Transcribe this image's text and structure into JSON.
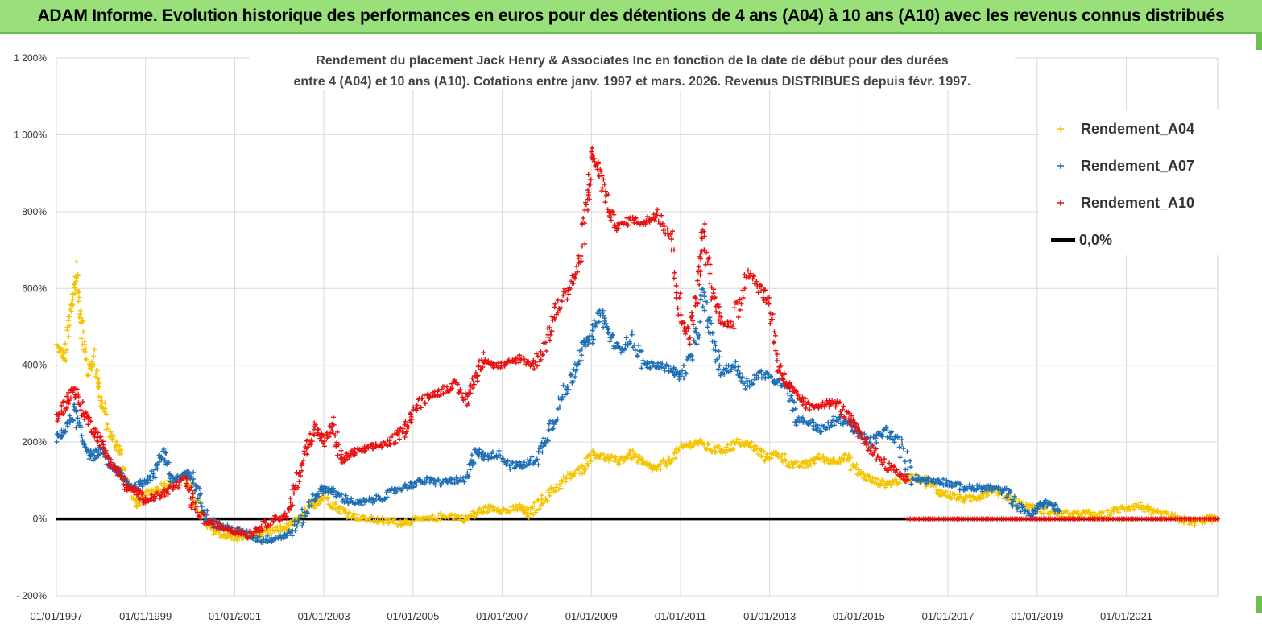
{
  "header": {
    "title": "ADAM Informe. Evolution historique des performances en euros pour des détentions de 4 ans (A04) à 10 ans (A10) avec les revenus connus distribués"
  },
  "chart_data": {
    "type": "scatter",
    "title_lines": [
      "Rendement du placement Jack Henry & Associates Inc en fonction de la date de début pour des durées",
      "entre 4 (A04) et 10 ans (A10). Cotations entre janv. 1997 et mars. 2026. Revenus DISTRIBUES depuis févr. 1997."
    ],
    "xlabel": "",
    "ylabel": "",
    "xlim": [
      1997.0,
      2023.05
    ],
    "ylim": [
      -200,
      1200
    ],
    "y_ticks": [
      -200,
      0,
      200,
      400,
      600,
      800,
      1000,
      1200
    ],
    "y_tick_labels": [
      "- 200%",
      "0%",
      "200%",
      "400%",
      "600%",
      "800%",
      "1 000%",
      "1 200%"
    ],
    "x_ticks": [
      1997,
      1999,
      2001,
      2003,
      2005,
      2007,
      2009,
      2011,
      2013,
      2015,
      2017,
      2019,
      2021
    ],
    "x_tick_labels": [
      "01/01/1997",
      "01/01/1999",
      "01/01/2001",
      "01/01/2003",
      "01/01/2005",
      "01/01/2007",
      "01/01/2009",
      "01/01/2011",
      "01/01/2013",
      "01/01/2015",
      "01/01/2017",
      "01/01/2019",
      "01/01/2021"
    ],
    "grid": true,
    "legend_position": "top-right",
    "series": [
      {
        "name": "Rendement_A04",
        "color": "#f5c400",
        "marker": "plus",
        "points": [
          [
            1997.0,
            450
          ],
          [
            1997.2,
            420
          ],
          [
            1997.35,
            560
          ],
          [
            1997.45,
            640
          ],
          [
            1997.55,
            520
          ],
          [
            1997.7,
            380
          ],
          [
            1997.85,
            420
          ],
          [
            1998.0,
            310
          ],
          [
            1998.2,
            220
          ],
          [
            1998.4,
            180
          ],
          [
            1998.6,
            90
          ],
          [
            1998.8,
            40
          ],
          [
            1999.0,
            60
          ],
          [
            1999.3,
            80
          ],
          [
            1999.6,
            100
          ],
          [
            1999.9,
            110
          ],
          [
            2000.1,
            50
          ],
          [
            2000.4,
            -20
          ],
          [
            2000.7,
            -40
          ],
          [
            2001.0,
            -50
          ],
          [
            2001.3,
            -45
          ],
          [
            2001.6,
            -40
          ],
          [
            2001.9,
            -30
          ],
          [
            2002.2,
            -20
          ],
          [
            2002.5,
            0
          ],
          [
            2002.8,
            40
          ],
          [
            2003.0,
            60
          ],
          [
            2003.3,
            30
          ],
          [
            2003.6,
            10
          ],
          [
            2003.9,
            0
          ],
          [
            2004.3,
            -5
          ],
          [
            2004.7,
            -10
          ],
          [
            2005.0,
            -5
          ],
          [
            2005.4,
            0
          ],
          [
            2005.8,
            10
          ],
          [
            2006.2,
            0
          ],
          [
            2006.5,
            20
          ],
          [
            2006.8,
            30
          ],
          [
            2007.1,
            20
          ],
          [
            2007.4,
            30
          ],
          [
            2007.6,
            10
          ],
          [
            2007.9,
            50
          ],
          [
            2008.2,
            80
          ],
          [
            2008.5,
            110
          ],
          [
            2008.8,
            130
          ],
          [
            2009.0,
            170
          ],
          [
            2009.3,
            160
          ],
          [
            2009.6,
            150
          ],
          [
            2009.9,
            170
          ],
          [
            2010.2,
            140
          ],
          [
            2010.5,
            130
          ],
          [
            2010.8,
            160
          ],
          [
            2011.1,
            190
          ],
          [
            2011.4,
            200
          ],
          [
            2011.7,
            180
          ],
          [
            2012.0,
            180
          ],
          [
            2012.3,
            200
          ],
          [
            2012.6,
            190
          ],
          [
            2012.9,
            160
          ],
          [
            2013.2,
            170
          ],
          [
            2013.5,
            140
          ],
          [
            2013.8,
            140
          ],
          [
            2014.1,
            160
          ],
          [
            2014.4,
            150
          ],
          [
            2014.7,
            160
          ],
          [
            2015.0,
            120
          ],
          [
            2015.3,
            100
          ],
          [
            2015.6,
            90
          ],
          [
            2015.9,
            100
          ],
          [
            2016.2,
            110
          ],
          [
            2016.5,
            100
          ],
          [
            2016.8,
            70
          ],
          [
            2017.1,
            60
          ],
          [
            2017.4,
            50
          ],
          [
            2017.7,
            60
          ],
          [
            2018.0,
            80
          ],
          [
            2018.3,
            60
          ],
          [
            2018.6,
            40
          ],
          [
            2018.9,
            30
          ],
          [
            2019.2,
            20
          ],
          [
            2019.5,
            15
          ],
          [
            2019.8,
            10
          ],
          [
            2020.1,
            15
          ],
          [
            2020.4,
            5
          ],
          [
            2020.7,
            20
          ],
          [
            2021.0,
            30
          ],
          [
            2021.3,
            35
          ],
          [
            2021.6,
            15
          ],
          [
            2021.9,
            10
          ],
          [
            2022.2,
            0
          ],
          [
            2022.5,
            -10
          ],
          [
            2022.8,
            0
          ],
          [
            2023.0,
            0
          ]
        ]
      },
      {
        "name": "Rendement_A07",
        "color": "#1f6fb5",
        "marker": "plus",
        "points": [
          [
            1997.0,
            210
          ],
          [
            1997.2,
            230
          ],
          [
            1997.4,
            280
          ],
          [
            1997.6,
            200
          ],
          [
            1997.8,
            160
          ],
          [
            1998.0,
            180
          ],
          [
            1998.2,
            140
          ],
          [
            1998.4,
            120
          ],
          [
            1998.6,
            90
          ],
          [
            1998.8,
            80
          ],
          [
            1999.0,
            100
          ],
          [
            1999.2,
            120
          ],
          [
            1999.4,
            180
          ],
          [
            1999.6,
            100
          ],
          [
            1999.8,
            110
          ],
          [
            2000.0,
            120
          ],
          [
            2000.2,
            60
          ],
          [
            2000.4,
            0
          ],
          [
            2000.7,
            -20
          ],
          [
            2001.0,
            -30
          ],
          [
            2001.3,
            -40
          ],
          [
            2001.6,
            -55
          ],
          [
            2001.9,
            -50
          ],
          [
            2002.2,
            -40
          ],
          [
            2002.5,
            0
          ],
          [
            2002.8,
            60
          ],
          [
            2003.0,
            80
          ],
          [
            2003.2,
            70
          ],
          [
            2003.5,
            50
          ],
          [
            2003.8,
            40
          ],
          [
            2004.1,
            50
          ],
          [
            2004.4,
            60
          ],
          [
            2004.7,
            80
          ],
          [
            2005.0,
            90
          ],
          [
            2005.3,
            100
          ],
          [
            2005.6,
            95
          ],
          [
            2005.9,
            100
          ],
          [
            2006.2,
            100
          ],
          [
            2006.4,
            180
          ],
          [
            2006.6,
            160
          ],
          [
            2006.9,
            170
          ],
          [
            2007.2,
            140
          ],
          [
            2007.5,
            140
          ],
          [
            2007.8,
            160
          ],
          [
            2008.0,
            220
          ],
          [
            2008.3,
            300
          ],
          [
            2008.6,
            380
          ],
          [
            2008.8,
            450
          ],
          [
            2009.0,
            470
          ],
          [
            2009.2,
            540
          ],
          [
            2009.4,
            480
          ],
          [
            2009.6,
            440
          ],
          [
            2009.9,
            470
          ],
          [
            2010.2,
            400
          ],
          [
            2010.5,
            400
          ],
          [
            2010.8,
            390
          ],
          [
            2011.0,
            370
          ],
          [
            2011.3,
            430
          ],
          [
            2011.5,
            580
          ],
          [
            2011.7,
            480
          ],
          [
            2011.9,
            380
          ],
          [
            2012.2,
            400
          ],
          [
            2012.5,
            350
          ],
          [
            2012.8,
            380
          ],
          [
            2013.1,
            360
          ],
          [
            2013.4,
            350
          ],
          [
            2013.6,
            260
          ],
          [
            2013.9,
            250
          ],
          [
            2014.2,
            230
          ],
          [
            2014.5,
            260
          ],
          [
            2014.8,
            250
          ],
          [
            2015.0,
            220
          ],
          [
            2015.3,
            200
          ],
          [
            2015.6,
            230
          ],
          [
            2015.9,
            200
          ],
          [
            2016.2,
            110
          ],
          [
            2016.5,
            100
          ],
          [
            2016.8,
            100
          ],
          [
            2017.1,
            90
          ],
          [
            2017.4,
            80
          ],
          [
            2017.7,
            80
          ],
          [
            2018.0,
            80
          ],
          [
            2018.3,
            70
          ],
          [
            2018.6,
            30
          ],
          [
            2018.9,
            10
          ],
          [
            2019.1,
            40
          ],
          [
            2019.3,
            40
          ],
          [
            2019.5,
            20
          ]
        ]
      },
      {
        "name": "Rendement_A10",
        "color": "#e81010",
        "marker": "plus",
        "points": [
          [
            1997.0,
            260
          ],
          [
            1997.2,
            300
          ],
          [
            1997.4,
            340
          ],
          [
            1997.6,
            280
          ],
          [
            1997.8,
            240
          ],
          [
            1998.0,
            200
          ],
          [
            1998.2,
            150
          ],
          [
            1998.4,
            120
          ],
          [
            1998.6,
            80
          ],
          [
            1998.8,
            70
          ],
          [
            1999.0,
            50
          ],
          [
            1999.3,
            60
          ],
          [
            1999.6,
            80
          ],
          [
            1999.9,
            100
          ],
          [
            2000.1,
            30
          ],
          [
            2000.4,
            -10
          ],
          [
            2000.7,
            -20
          ],
          [
            2001.0,
            -30
          ],
          [
            2001.3,
            -40
          ],
          [
            2001.6,
            -20
          ],
          [
            2001.9,
            0
          ],
          [
            2002.2,
            10
          ],
          [
            2002.4,
            100
          ],
          [
            2002.6,
            180
          ],
          [
            2002.8,
            240
          ],
          [
            2003.0,
            200
          ],
          [
            2003.2,
            240
          ],
          [
            2003.4,
            150
          ],
          [
            2003.6,
            170
          ],
          [
            2003.9,
            180
          ],
          [
            2004.2,
            190
          ],
          [
            2004.5,
            200
          ],
          [
            2004.8,
            230
          ],
          [
            2005.0,
            280
          ],
          [
            2005.3,
            320
          ],
          [
            2005.6,
            330
          ],
          [
            2005.9,
            350
          ],
          [
            2006.2,
            310
          ],
          [
            2006.4,
            370
          ],
          [
            2006.6,
            420
          ],
          [
            2006.8,
            400
          ],
          [
            2007.1,
            400
          ],
          [
            2007.4,
            420
          ],
          [
            2007.7,
            400
          ],
          [
            2008.0,
            460
          ],
          [
            2008.2,
            540
          ],
          [
            2008.5,
            600
          ],
          [
            2008.7,
            650
          ],
          [
            2008.9,
            800
          ],
          [
            2009.0,
            950
          ],
          [
            2009.2,
            900
          ],
          [
            2009.4,
            800
          ],
          [
            2009.6,
            760
          ],
          [
            2009.9,
            780
          ],
          [
            2010.2,
            770
          ],
          [
            2010.5,
            800
          ],
          [
            2010.8,
            730
          ],
          [
            2011.0,
            520
          ],
          [
            2011.2,
            480
          ],
          [
            2011.4,
            600
          ],
          [
            2011.5,
            750
          ],
          [
            2011.7,
            600
          ],
          [
            2011.9,
            520
          ],
          [
            2012.2,
            500
          ],
          [
            2012.5,
            650
          ],
          [
            2012.8,
            600
          ],
          [
            2013.0,
            560
          ],
          [
            2013.2,
            400
          ],
          [
            2013.4,
            350
          ],
          [
            2013.6,
            320
          ],
          [
            2013.9,
            290
          ],
          [
            2014.2,
            300
          ],
          [
            2014.5,
            300
          ],
          [
            2014.8,
            260
          ],
          [
            2015.0,
            220
          ],
          [
            2015.3,
            180
          ],
          [
            2015.6,
            140
          ],
          [
            2015.9,
            120
          ],
          [
            2016.1,
            100
          ]
        ]
      },
      {
        "name": "0,0%",
        "color": "#000000",
        "marker": "line",
        "points": [
          [
            1997.0,
            0
          ],
          [
            2023.05,
            0
          ]
        ]
      }
    ]
  }
}
